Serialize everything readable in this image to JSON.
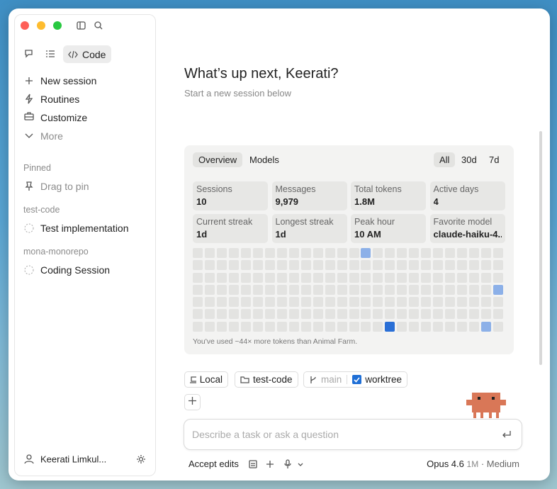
{
  "sidebar": {
    "mode": "Code",
    "nav": [
      "New session",
      "Routines",
      "Customize",
      "More"
    ],
    "pinned": {
      "heading": "Pinned",
      "placeholder": "Drag to pin"
    },
    "groups": [
      {
        "name": "test-code",
        "sessions": [
          "Test implementation"
        ]
      },
      {
        "name": "mona-monorepo",
        "sessions": [
          "Coding Session"
        ]
      }
    ],
    "user": "Keerati Limkul..."
  },
  "main": {
    "title": "What’s up next, Keerati?",
    "subtitle": "Start a new session below"
  },
  "stats": {
    "tabs": [
      "Overview",
      "Models"
    ],
    "ranges": [
      "All",
      "30d",
      "7d"
    ],
    "cards": [
      {
        "label": "Sessions",
        "value": 10
      },
      {
        "label": "Messages",
        "value": "9,979"
      },
      {
        "label": "Total tokens",
        "value": "1.8M"
      },
      {
        "label": "Active days",
        "value": 4
      },
      {
        "label": "Current streak",
        "value": "1d"
      },
      {
        "label": "Longest streak",
        "value": "1d"
      },
      {
        "label": "Peak hour",
        "value": "10 AM"
      },
      {
        "label": "Favorite model",
        "value": "claude-haiku-4..."
      }
    ],
    "heatmap": {
      "columns": 26,
      "rows": 7,
      "active": [
        {
          "column": 14,
          "row": 0,
          "level": 1
        },
        {
          "column": 25,
          "row": 3,
          "level": 1
        },
        {
          "column": 16,
          "row": 6,
          "level": 2
        },
        {
          "column": 24,
          "row": 6,
          "level": 1
        }
      ]
    },
    "note": "You've used ~44× more tokens than Animal Farm."
  },
  "composer": {
    "chips": [
      "Local",
      "test-code"
    ],
    "branch": "main",
    "worktree": "worktree",
    "placeholder": "Describe a task or ask a question",
    "mode": "Accept edits",
    "model": "Opus 4.6",
    "context": "1M",
    "effort": "· Medium"
  }
}
